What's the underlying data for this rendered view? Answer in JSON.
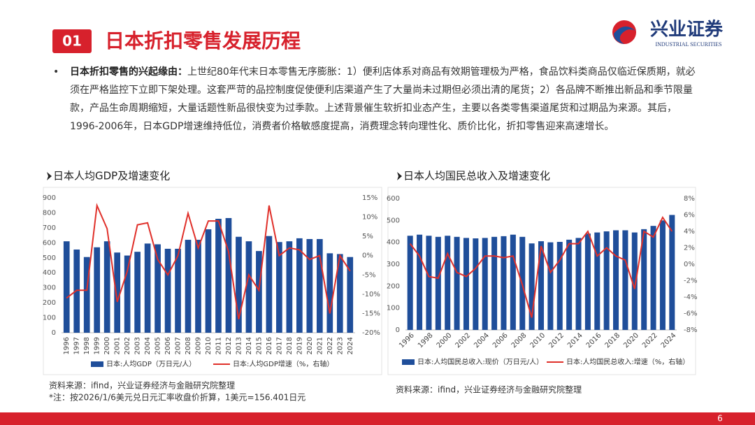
{
  "header": {
    "number": "01",
    "title": "日本折扣零售发展历程",
    "logo_cn": "兴业证券",
    "logo_en": "INDUSTRIAL SECURITIES"
  },
  "body": {
    "lead": "日本折扣零售的兴起缘由：",
    "text": "上世纪80年代末日本零售无序膨胀：1）便利店体系对商品有效期管理极为严格，食品饮料类商品仅临近保质期，就必须在严格监控下立即下架处理。这套严苛的品控制度促使便利店渠道产生了大量尚未过期但必须出清的尾货；2）各品牌不断推出新品和季节限量款，产品生命周期缩短，大量话题性新品很快变为过季款。上述背景催生软折扣业态产生，主要以各类零售渠道尾货和过期品为来源。其后，1996-2006年，日本GDP增速维持低位，消费者价格敏感度提高，消费理念转向理性化、质价比化，折扣零售迎来高速增长。"
  },
  "page_number": "6",
  "chart_data": [
    {
      "type": "bar_line",
      "title": "日本人均GDP及增速变化",
      "categories": [
        "1996",
        "1997",
        "1998",
        "1999",
        "2000",
        "2001",
        "2002",
        "2003",
        "2004",
        "2005",
        "2006",
        "2007",
        "2008",
        "2009",
        "2010",
        "2011",
        "2012",
        "2013",
        "2014",
        "2015",
        "2016",
        "2017",
        "2018",
        "2019",
        "2020",
        "2021",
        "2022",
        "2023",
        "2024"
      ],
      "series": [
        {
          "name": "日本:人均GDP（万日元/人）",
          "kind": "bar",
          "color": "#1f4e9a",
          "values": [
            610,
            555,
            505,
            570,
            610,
            535,
            515,
            540,
            595,
            590,
            560,
            560,
            620,
            620,
            690,
            760,
            765,
            640,
            610,
            545,
            645,
            605,
            610,
            630,
            625,
            625,
            530,
            525,
            505
          ]
        },
        {
          "name": "日本:人均GDP增速（%，右轴）",
          "kind": "line",
          "axis": "y2",
          "color": "#e0302a",
          "values": [
            -11,
            -9,
            -9,
            13,
            7,
            -12,
            -4,
            8,
            8.5,
            -1,
            -5,
            0,
            11,
            2,
            9,
            9,
            1,
            -16.5,
            -5,
            -9,
            13,
            0,
            2,
            1.5,
            -1,
            0,
            -15,
            0,
            -4
          ]
        }
      ],
      "ylim": [
        0,
        900
      ],
      "yticks": [
        0,
        100,
        200,
        300,
        400,
        500,
        600,
        700,
        800,
        900
      ],
      "y2lim": [
        -20,
        15
      ],
      "y2ticks": [
        {
          "value": -20,
          "label": "-20%"
        },
        {
          "value": -15,
          "label": "-15%"
        },
        {
          "value": -10,
          "label": "-10%"
        },
        {
          "value": -5,
          "label": "-5%"
        },
        {
          "value": 0,
          "label": "0%"
        },
        {
          "value": 5,
          "label": "5%"
        },
        {
          "value": 10,
          "label": "10%"
        },
        {
          "value": 15,
          "label": "15%"
        }
      ],
      "source": "资料来源：ifind，兴业证券经济与金融研究院整理",
      "note": "*注：按2026/1/6美元兑日元汇率收盘价折算，1美元=156.401日元"
    },
    {
      "type": "bar_line",
      "title": "日本人均国民总收入及增速变化",
      "categories": [
        "1996",
        null,
        "1998",
        null,
        "2000",
        null,
        "2002",
        null,
        "2004",
        null,
        "2006",
        null,
        "2008",
        null,
        "2010",
        null,
        "2012",
        null,
        "2014",
        null,
        "2016",
        null,
        "2018",
        null,
        "2020",
        null,
        "2022",
        null,
        "2024"
      ],
      "series": [
        {
          "name": "日本:人均国民总收入:现价（万日元/人）",
          "kind": "bar",
          "color": "#1f4e9a",
          "values": [
            430,
            435,
            430,
            425,
            430,
            425,
            420,
            418,
            420,
            425,
            428,
            435,
            425,
            395,
            405,
            400,
            402,
            412,
            420,
            440,
            445,
            450,
            455,
            455,
            445,
            460,
            475,
            500,
            525
          ]
        },
        {
          "name": "日本:人均国民总收入:增速（%，右轴）",
          "kind": "line",
          "axis": "y2",
          "color": "#e0302a",
          "values": [
            2.5,
            1,
            -1.5,
            -1.7,
            1.3,
            -1,
            -1.5,
            -0.5,
            1,
            1,
            0.8,
            1,
            -2.5,
            -6.5,
            2.2,
            -1,
            0.5,
            2.5,
            2.5,
            4,
            1,
            2,
            1,
            0.5,
            -3,
            4,
            3.3,
            5.7,
            4
          ]
        }
      ],
      "ylim": [
        0,
        600
      ],
      "yticks": [
        0,
        100,
        200,
        300,
        400,
        500,
        600
      ],
      "y2lim": [
        -8,
        8
      ],
      "y2ticks": [
        {
          "value": -8,
          "label": "-8%"
        },
        {
          "value": -6,
          "label": "-6%"
        },
        {
          "value": -4,
          "label": "-4%"
        },
        {
          "value": -2,
          "label": "-2%"
        },
        {
          "value": 0,
          "label": "0%"
        },
        {
          "value": 2,
          "label": "2%"
        },
        {
          "value": 4,
          "label": "4%"
        },
        {
          "value": 6,
          "label": "6%"
        },
        {
          "value": 8,
          "label": "8%"
        }
      ],
      "source": "资料来源：ifind，兴业证券经济与金融研究院整理"
    }
  ]
}
